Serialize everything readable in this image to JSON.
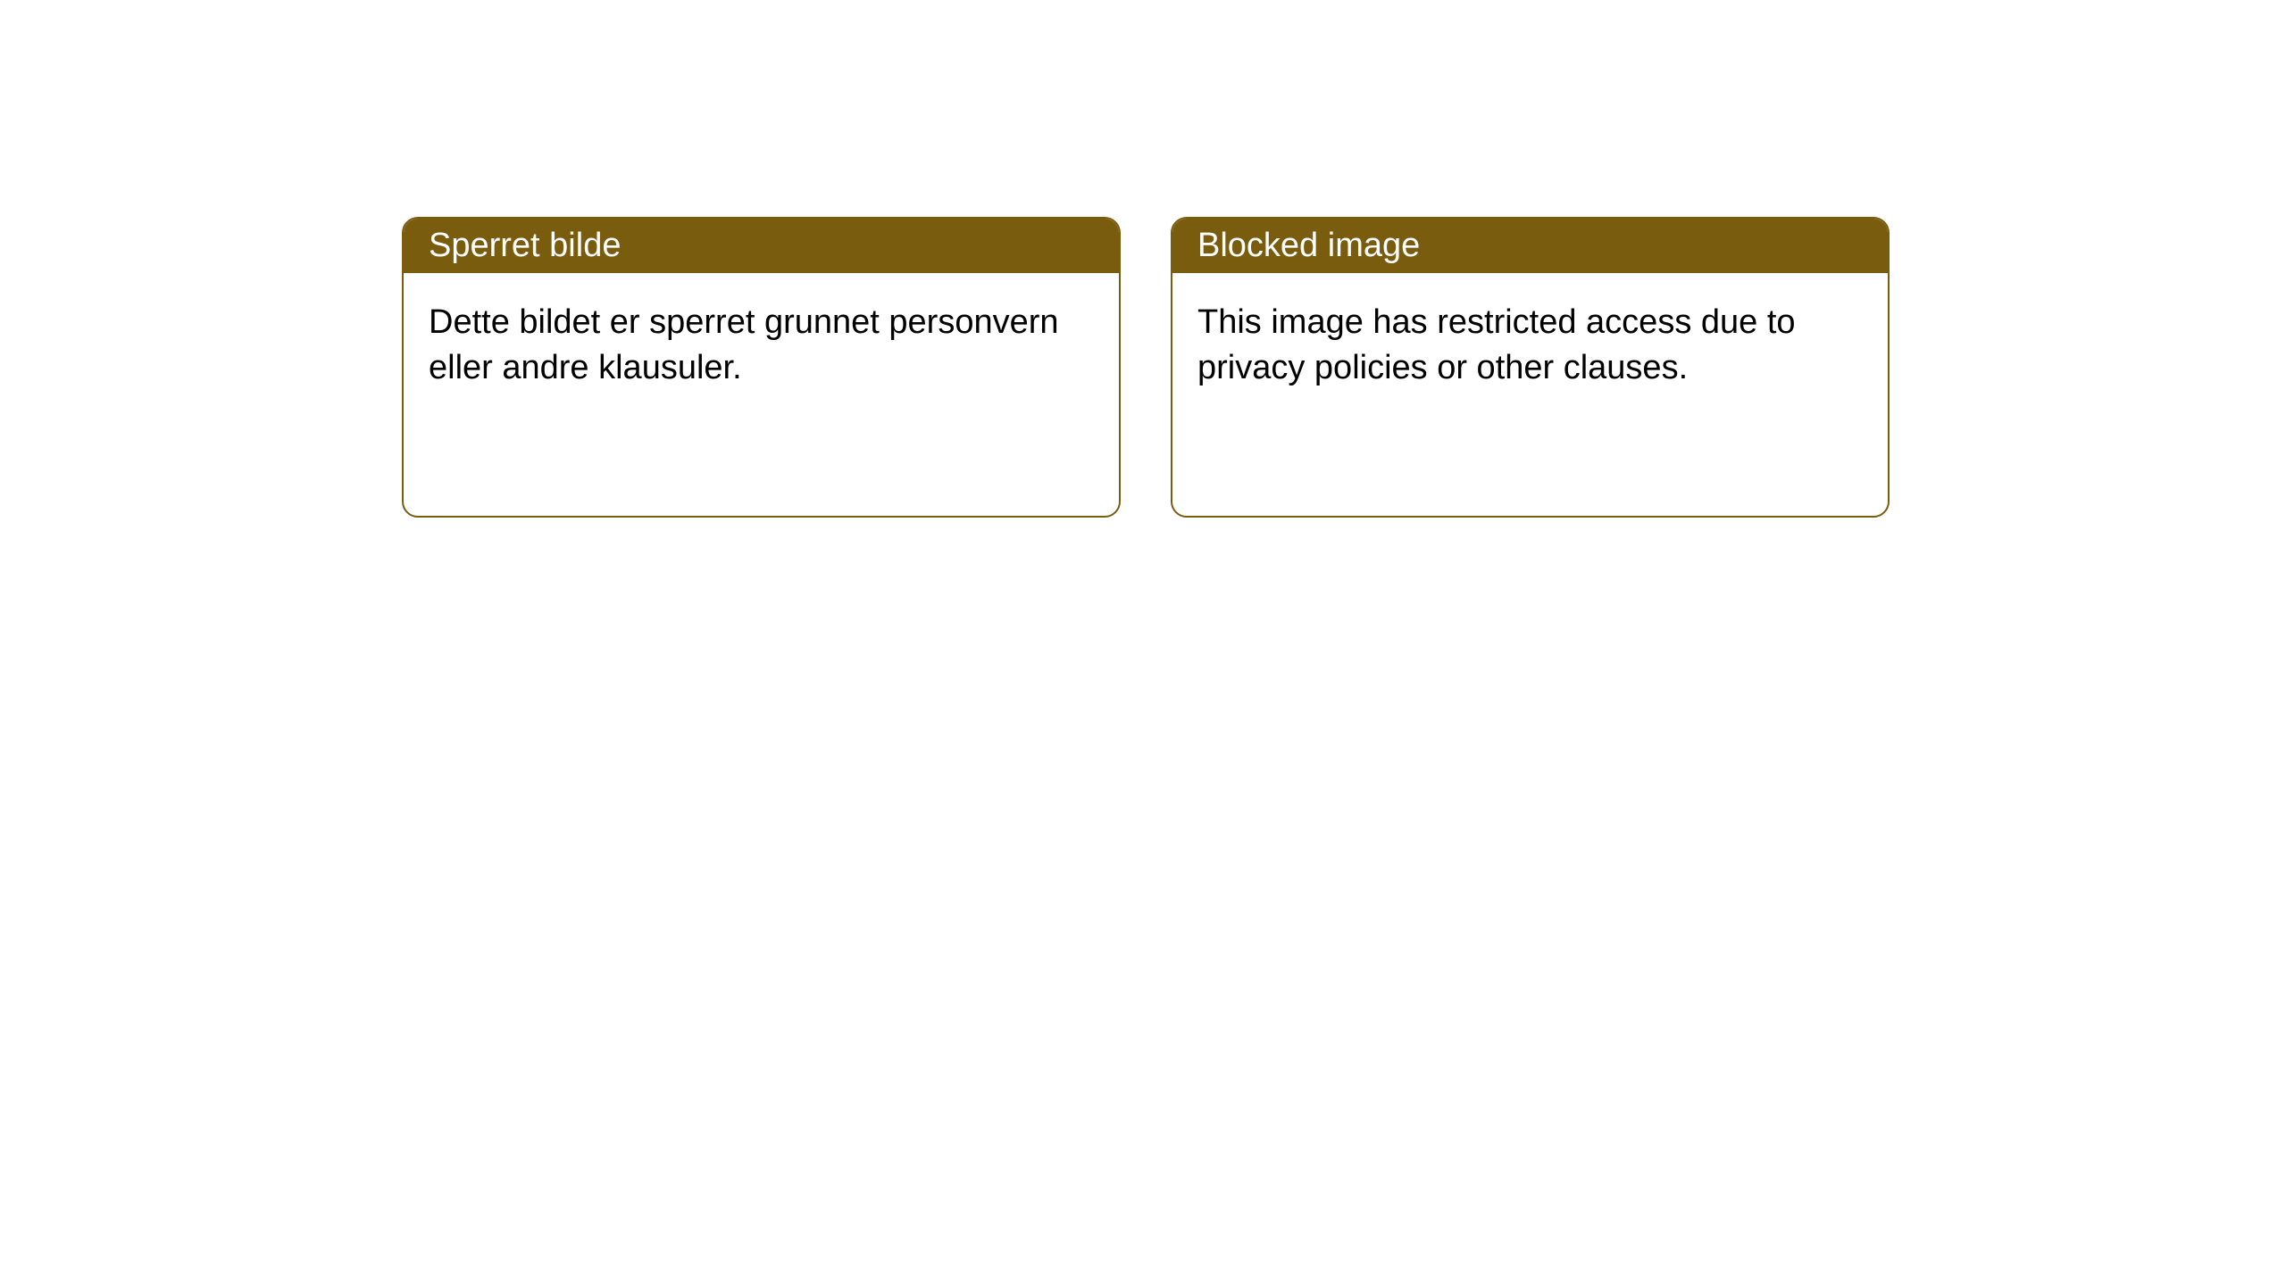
{
  "notices": [
    {
      "title": "Sperret bilde",
      "body": "Dette bildet er sperret grunnet personvern eller andre klausuler."
    },
    {
      "title": "Blocked image",
      "body": "This image has restricted access due to privacy policies or other clauses."
    }
  ],
  "style": {
    "header_bg": "#7a5c0f",
    "header_text": "#ffffff",
    "border_color": "#7a5c0f",
    "body_bg": "#ffffff",
    "body_text": "#000000",
    "border_radius": 18,
    "title_fontsize": 38,
    "body_fontsize": 38
  }
}
